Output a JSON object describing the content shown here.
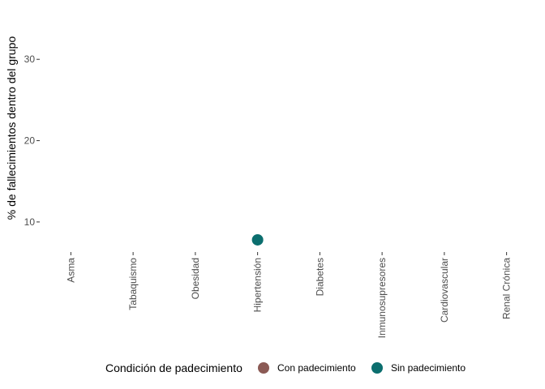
{
  "chart_data": {
    "type": "scatter",
    "title": "",
    "xlabel": "",
    "ylabel": "% de fallecimientos dentro del grupo",
    "categories": [
      "Asma",
      "Tabaquismo",
      "Obesidad",
      "Hipertensión",
      "Diabetes",
      "Inmunosupresores",
      "Cardiovascular",
      "Renal Crónica"
    ],
    "yticks": [
      10,
      20,
      30
    ],
    "ytick_labels": [
      "10",
      "20",
      "30"
    ],
    "ylim": [
      6.7,
      36.3
    ],
    "grid": false,
    "legend": {
      "title": "Condición de padecimiento",
      "position": "bottom"
    },
    "series": [
      {
        "name": "Con padecimiento",
        "color": "#8B5A55",
        "points": []
      },
      {
        "name": "Sin padecimiento",
        "color": "#0B6E6E",
        "points": [
          {
            "category": "Hipertensión",
            "y": 7.8
          }
        ]
      }
    ]
  }
}
